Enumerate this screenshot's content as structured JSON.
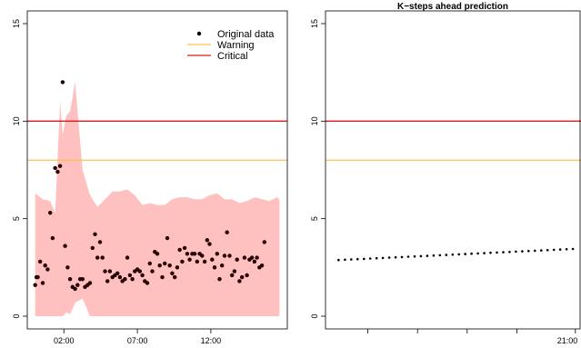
{
  "chart_data": [
    {
      "type": "scatter",
      "title": "",
      "xlabel": "",
      "ylabel": "",
      "xlim": [
        0,
        1.0
      ],
      "ylim": [
        0,
        15
      ],
      "x_ticks": [
        {
          "label": "02:00",
          "at": 0.125
        },
        {
          "label": "07:00",
          "at": 0.42
        },
        {
          "label": "12:00",
          "at": 0.715
        }
      ],
      "y_ticks": [
        0,
        5,
        10,
        15
      ],
      "legend": {
        "placement": "top-right",
        "entries": [
          {
            "label": "Original data",
            "kind": "point",
            "color": "#000000"
          },
          {
            "label": "Warning",
            "kind": "line",
            "color": "#FFC04D"
          },
          {
            "label": "Critical",
            "kind": "line",
            "color": "#D7191C"
          }
        ]
      },
      "thresholds": {
        "warning": 8,
        "critical": 10
      },
      "band": {
        "color": "#FFC0C0",
        "x": [
          0.01,
          0.04,
          0.07,
          0.09,
          0.11,
          0.12,
          0.135,
          0.15,
          0.17,
          0.2,
          0.23,
          0.26,
          0.29,
          0.32,
          0.35,
          0.38,
          0.41,
          0.44,
          0.47,
          0.5,
          0.53,
          0.56,
          0.59,
          0.62,
          0.65,
          0.68,
          0.71,
          0.74,
          0.77,
          0.8,
          0.83,
          0.86,
          0.89,
          0.92,
          0.95,
          0.98,
          0.99
        ],
        "upper": [
          6.3,
          6.0,
          5.9,
          5.3,
          11.0,
          9.3,
          10.3,
          10.5,
          12.0,
          7.5,
          6.2,
          5.6,
          6.0,
          6.4,
          6.4,
          6.5,
          6.2,
          5.7,
          5.8,
          5.7,
          5.7,
          6.0,
          6.1,
          6.1,
          6.0,
          6.0,
          6.2,
          6.3,
          6.0,
          6.0,
          5.8,
          5.9,
          6.1,
          6.0,
          5.9,
          6.1,
          6.0
        ],
        "lower": [
          0,
          0,
          0,
          0,
          0,
          0,
          0.2,
          0.1,
          0.7,
          0.9,
          0,
          0,
          0,
          0,
          0,
          0,
          0,
          0,
          0,
          0,
          0,
          0,
          0,
          0,
          0,
          0,
          0,
          0,
          0,
          0,
          0,
          0,
          0,
          0,
          0,
          0,
          0
        ]
      },
      "points": [
        [
          0.01,
          1.6
        ],
        [
          0.015,
          2.0
        ],
        [
          0.02,
          2.0
        ],
        [
          0.03,
          2.8
        ],
        [
          0.04,
          1.7
        ],
        [
          0.05,
          2.6
        ],
        [
          0.06,
          2.4
        ],
        [
          0.07,
          5.3
        ],
        [
          0.08,
          4.0
        ],
        [
          0.09,
          7.6
        ],
        [
          0.1,
          7.4
        ],
        [
          0.11,
          7.7
        ],
        [
          0.12,
          12.0
        ],
        [
          0.13,
          3.6
        ],
        [
          0.14,
          2.5
        ],
        [
          0.15,
          1.9
        ],
        [
          0.16,
          1.5
        ],
        [
          0.17,
          1.4
        ],
        [
          0.18,
          1.6
        ],
        [
          0.19,
          1.9
        ],
        [
          0.2,
          1.9
        ],
        [
          0.21,
          1.5
        ],
        [
          0.22,
          1.6
        ],
        [
          0.23,
          1.7
        ],
        [
          0.24,
          3.5
        ],
        [
          0.25,
          4.2
        ],
        [
          0.26,
          3.0
        ],
        [
          0.27,
          3.8
        ],
        [
          0.28,
          3.0
        ],
        [
          0.29,
          2.3
        ],
        [
          0.3,
          1.8
        ],
        [
          0.31,
          2.3
        ],
        [
          0.32,
          2.0
        ],
        [
          0.33,
          2.1
        ],
        [
          0.34,
          2.2
        ],
        [
          0.35,
          2.0
        ],
        [
          0.36,
          1.8
        ],
        [
          0.37,
          1.9
        ],
        [
          0.38,
          3.0
        ],
        [
          0.39,
          2.1
        ],
        [
          0.4,
          1.9
        ],
        [
          0.41,
          2.3
        ],
        [
          0.42,
          2.4
        ],
        [
          0.43,
          2.3
        ],
        [
          0.44,
          2.1
        ],
        [
          0.45,
          1.8
        ],
        [
          0.46,
          1.7
        ],
        [
          0.47,
          2.7
        ],
        [
          0.48,
          2.3
        ],
        [
          0.49,
          3.3
        ],
        [
          0.5,
          3.2
        ],
        [
          0.51,
          2.6
        ],
        [
          0.52,
          2.0
        ],
        [
          0.53,
          2.7
        ],
        [
          0.54,
          4.0
        ],
        [
          0.55,
          2.6
        ],
        [
          0.56,
          2.2
        ],
        [
          0.57,
          2.0
        ],
        [
          0.58,
          2.5
        ],
        [
          0.59,
          3.4
        ],
        [
          0.6,
          2.8
        ],
        [
          0.61,
          3.5
        ],
        [
          0.62,
          3.2
        ],
        [
          0.63,
          2.9
        ],
        [
          0.64,
          3.2
        ],
        [
          0.65,
          3.2
        ],
        [
          0.66,
          2.8
        ],
        [
          0.67,
          3.2
        ],
        [
          0.68,
          3.1
        ],
        [
          0.69,
          2.8
        ],
        [
          0.7,
          3.9
        ],
        [
          0.71,
          3.7
        ],
        [
          0.72,
          2.9
        ],
        [
          0.73,
          2.5
        ],
        [
          0.74,
          3.2
        ],
        [
          0.75,
          1.9
        ],
        [
          0.76,
          2.6
        ],
        [
          0.77,
          3.1
        ],
        [
          0.78,
          4.3
        ],
        [
          0.79,
          3.1
        ],
        [
          0.8,
          2.1
        ],
        [
          0.81,
          2.3
        ],
        [
          0.82,
          2.9
        ],
        [
          0.83,
          1.8
        ],
        [
          0.84,
          2.0
        ],
        [
          0.85,
          3.0
        ],
        [
          0.86,
          2.1
        ],
        [
          0.87,
          2.9
        ],
        [
          0.88,
          3.0
        ],
        [
          0.89,
          2.8
        ],
        [
          0.9,
          3.0
        ],
        [
          0.91,
          2.5
        ],
        [
          0.92,
          2.6
        ],
        [
          0.93,
          3.8
        ]
      ]
    },
    {
      "type": "scatter",
      "title": "K−steps ahead prediction",
      "xlabel": "",
      "ylabel": "",
      "xlim": [
        0,
        1.0
      ],
      "ylim": [
        0,
        15
      ],
      "x_ticks": [
        {
          "label": "",
          "at": 0.145
        },
        {
          "label": "",
          "at": 0.34
        },
        {
          "label": "",
          "at": 0.535
        },
        {
          "label": "",
          "at": 0.73
        },
        {
          "label": "21:00",
          "at": 0.96
        }
      ],
      "y_ticks": [
        0,
        5,
        10,
        15
      ],
      "thresholds": {
        "warning": 8,
        "critical": 10
      },
      "points_range": {
        "x_start": 0.03,
        "x_end": 1.0,
        "count": 40,
        "y_start": 2.88,
        "y_end": 3.48
      }
    }
  ],
  "colors": {
    "warning": "#FFC04D",
    "critical": "#D7191C",
    "band": "#FFC0C0",
    "points": "#000000",
    "points_fill": "#3a0000"
  }
}
